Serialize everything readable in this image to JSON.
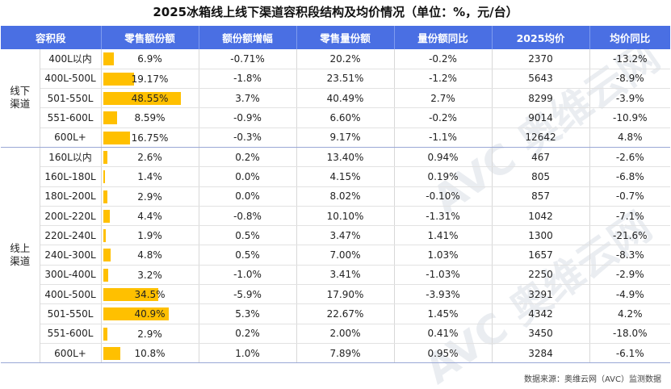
{
  "title": "2025冰箱线上线下渠道容积段结构及均价情况（单位：%，元/台）",
  "headers": [
    "容积段",
    "零售额份额",
    "额份额增幅",
    "零售量份额",
    "量份额同比",
    "2025均价",
    "均价同比"
  ],
  "groups": [
    {
      "name": "线下\n渠道",
      "rows": [
        {
          "segment": "400L以内",
          "share": 6.9,
          "share_label": "6.9%",
          "share_growth": "-0.71%",
          "vol_share": "20.2%",
          "vol_yoy": "-0.2%",
          "price": "2370",
          "price_yoy": "-13.2%"
        },
        {
          "segment": "400L-500L",
          "share": 19.17,
          "share_label": "19.17%",
          "share_growth": "-1.8%",
          "vol_share": "23.51%",
          "vol_yoy": "-1.2%",
          "price": "5643",
          "price_yoy": "-8.9%"
        },
        {
          "segment": "501-550L",
          "share": 48.55,
          "share_label": "48.55%",
          "share_growth": "3.7%",
          "vol_share": "40.49%",
          "vol_yoy": "2.7%",
          "price": "8299",
          "price_yoy": "-3.9%"
        },
        {
          "segment": "551-600L",
          "share": 8.59,
          "share_label": "8.59%",
          "share_growth": "-0.9%",
          "vol_share": "6.60%",
          "vol_yoy": "-0.2%",
          "price": "9014",
          "price_yoy": "-10.9%"
        },
        {
          "segment": "600L+",
          "share": 16.75,
          "share_label": "16.75%",
          "share_growth": "-0.3%",
          "vol_share": "9.17%",
          "vol_yoy": "-1.1%",
          "price": "12642",
          "price_yoy": "4.8%"
        }
      ]
    },
    {
      "name": "线上\n渠道",
      "rows": [
        {
          "segment": "160L以内",
          "share": 2.6,
          "share_label": "2.6%",
          "share_growth": "0.2%",
          "vol_share": "13.40%",
          "vol_yoy": "0.94%",
          "price": "467",
          "price_yoy": "-2.6%"
        },
        {
          "segment": "160L-180L",
          "share": 1.4,
          "share_label": "1.4%",
          "share_growth": "0.0%",
          "vol_share": "4.15%",
          "vol_yoy": "0.19%",
          "price": "805",
          "price_yoy": "-6.8%"
        },
        {
          "segment": "180L-200L",
          "share": 2.9,
          "share_label": "2.9%",
          "share_growth": "0.0%",
          "vol_share": "8.02%",
          "vol_yoy": "-0.10%",
          "price": "857",
          "price_yoy": "-0.7%"
        },
        {
          "segment": "200L-220L",
          "share": 4.4,
          "share_label": "4.4%",
          "share_growth": "-0.8%",
          "vol_share": "10.10%",
          "vol_yoy": "-1.31%",
          "price": "1042",
          "price_yoy": "-7.1%"
        },
        {
          "segment": "220L-240L",
          "share": 1.9,
          "share_label": "1.9%",
          "share_growth": "0.5%",
          "vol_share": "3.47%",
          "vol_yoy": "1.41%",
          "price": "1300",
          "price_yoy": "-21.6%"
        },
        {
          "segment": "240L-300L",
          "share": 4.8,
          "share_label": "4.8%",
          "share_growth": "0.5%",
          "vol_share": "7.00%",
          "vol_yoy": "1.03%",
          "price": "1657",
          "price_yoy": "-8.3%"
        },
        {
          "segment": "300L-400L",
          "share": 3.2,
          "share_label": "3.2%",
          "share_growth": "-1.0%",
          "vol_share": "3.41%",
          "vol_yoy": "-1.03%",
          "price": "2250",
          "price_yoy": "-2.9%"
        },
        {
          "segment": "400L-500L",
          "share": 34.5,
          "share_label": "34.5%",
          "share_growth": "-5.9%",
          "vol_share": "17.90%",
          "vol_yoy": "-3.93%",
          "price": "3291",
          "price_yoy": "-4.9%"
        },
        {
          "segment": "501-550L",
          "share": 40.9,
          "share_label": "40.9%",
          "share_growth": "5.3%",
          "vol_share": "22.67%",
          "vol_yoy": "1.45%",
          "price": "4342",
          "price_yoy": "4.2%"
        },
        {
          "segment": "551-600L",
          "share": 2.9,
          "share_label": "2.9%",
          "share_growth": "0.2%",
          "vol_share": "2.00%",
          "vol_yoy": "0.41%",
          "price": "3450",
          "price_yoy": "-18.0%"
        },
        {
          "segment": "600L+",
          "share": 10.8,
          "share_label": "10.8%",
          "share_growth": "1.0%",
          "vol_share": "7.89%",
          "vol_yoy": "0.95%",
          "price": "3284",
          "price_yoy": "-6.1%"
        }
      ]
    }
  ],
  "bar_max": 50,
  "bar_color": "#ffc000",
  "header_color": "#4a6fe3",
  "source": "数据来源：奥维云网（AVC）监测数据",
  "watermark": "AVC 奥维云网"
}
